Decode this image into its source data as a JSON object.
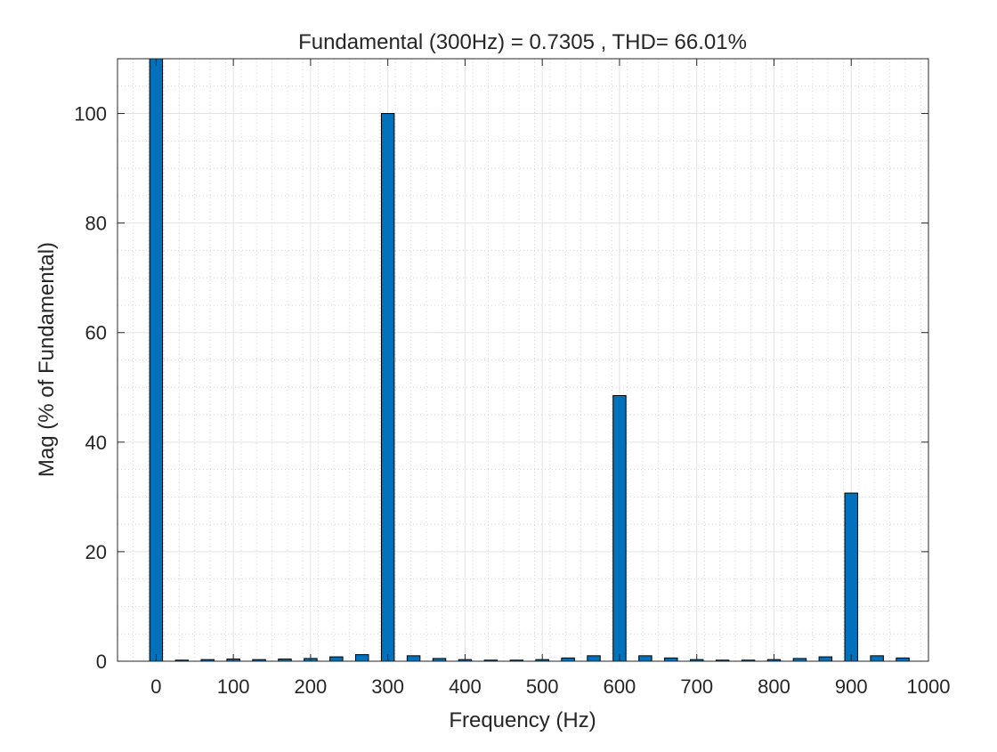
{
  "chart_data": {
    "type": "bar",
    "title": "Fundamental (300Hz) = 0.7305 , THD= 66.01%",
    "xlabel": "Frequency (Hz)",
    "ylabel": "Mag (% of Fundamental)",
    "xlim": [
      -50,
      1000
    ],
    "ylim": [
      0,
      110
    ],
    "grid": true,
    "minor_grid": true,
    "bar_color": "#0072BD",
    "xticks": [
      0,
      100,
      200,
      300,
      400,
      500,
      600,
      700,
      800,
      900,
      1000
    ],
    "yticks": [
      0,
      20,
      40,
      60,
      80,
      100
    ],
    "x": [
      0,
      33.33,
      66.67,
      100,
      133.33,
      166.67,
      200,
      233.33,
      266.67,
      300,
      333.33,
      366.67,
      400,
      433.33,
      466.67,
      500,
      533.33,
      566.67,
      600,
      633.33,
      666.67,
      700,
      733.33,
      766.67,
      800,
      833.33,
      866.67,
      900,
      933.33,
      966.67
    ],
    "values": [
      110,
      0.2,
      0.3,
      0.4,
      0.3,
      0.4,
      0.5,
      0.8,
      1.2,
      100,
      1.0,
      0.5,
      0.3,
      0.2,
      0.2,
      0.3,
      0.6,
      1.0,
      48.5,
      1.0,
      0.6,
      0.3,
      0.2,
      0.2,
      0.3,
      0.5,
      0.8,
      30.7,
      1.0,
      0.6
    ]
  }
}
